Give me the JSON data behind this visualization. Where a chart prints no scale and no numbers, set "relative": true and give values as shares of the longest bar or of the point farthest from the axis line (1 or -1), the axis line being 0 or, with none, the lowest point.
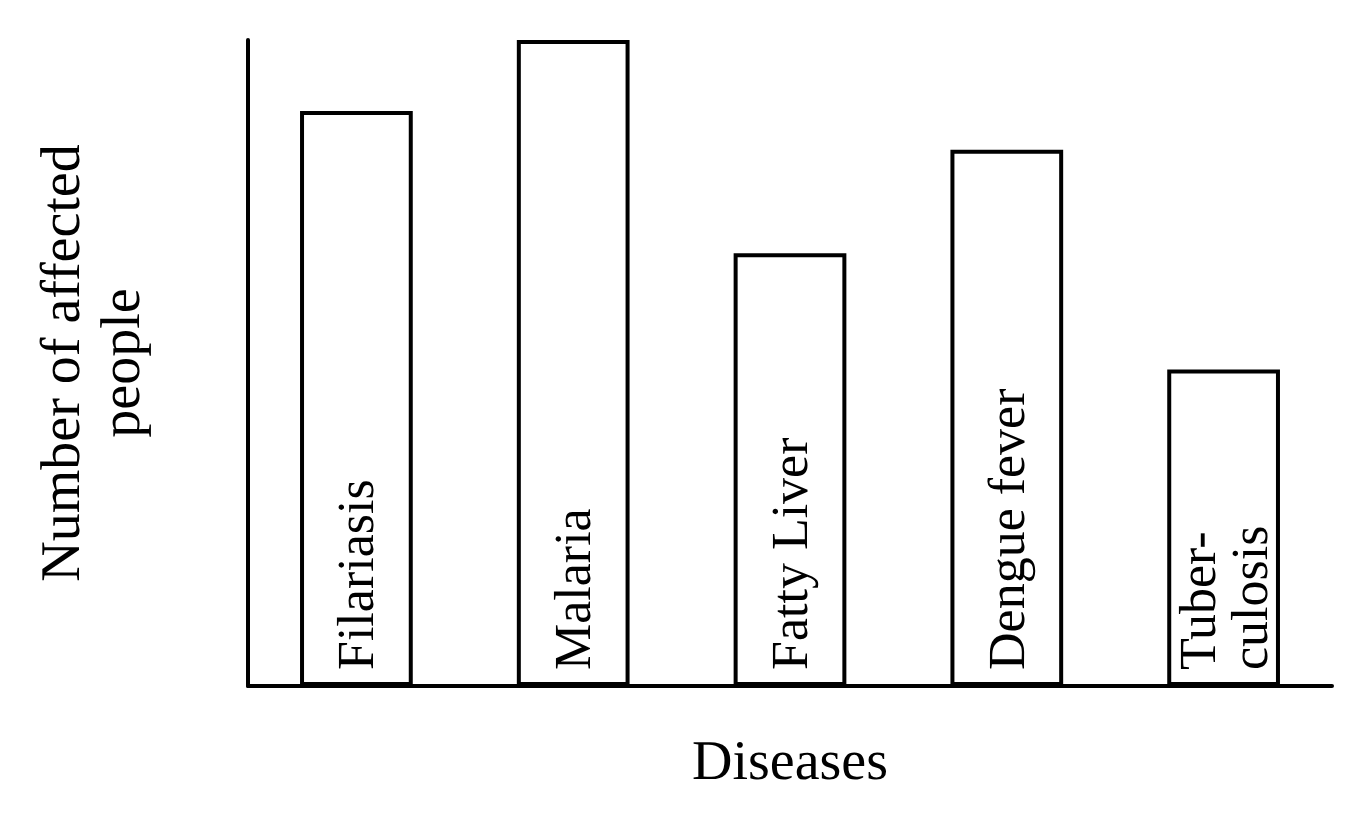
{
  "chart_data": {
    "type": "bar",
    "xlabel": "Diseases",
    "ylabel": "Number of affected\npeople",
    "categories": [
      "Filariasis",
      "Malaria",
      "Fatty Liver",
      "Dengue fever",
      "Tuber-\nculosis"
    ],
    "values": [
      0.89,
      1,
      0.67,
      0.83,
      0.49
    ],
    "color": "#ffffff",
    "relative": true,
    "grid": false
  }
}
